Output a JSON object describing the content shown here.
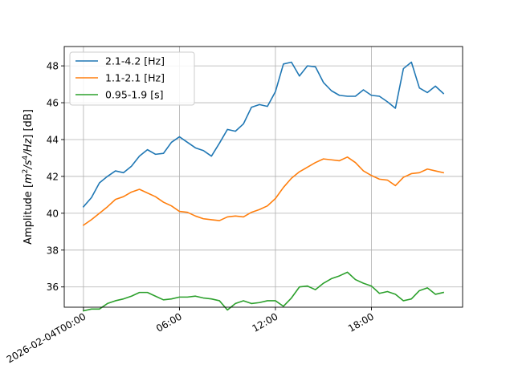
{
  "chart_data": {
    "type": "line",
    "title": "",
    "xlabel": "",
    "ylabel": "Amplitude [m²/s⁴/Hz] [dB]",
    "ylabel_parts": {
      "prefix": "Amplitude [",
      "m": "m",
      "exp2": "2",
      "s": "/s",
      "exp4": "4",
      "hz": "/Hz",
      "suffix": "] [dB]"
    },
    "grid": true,
    "legend_position": "top-left",
    "x_unit": "hours since 2026-02-04T00:00",
    "xlim": [
      -1.2,
      23.7
    ],
    "ylim": [
      34.9,
      49.05
    ],
    "x_ticks": [
      {
        "value": 0,
        "label": "2026-02-04T00:00"
      },
      {
        "value": 6,
        "label": "06:00"
      },
      {
        "value": 12,
        "label": "12:00"
      },
      {
        "value": 18,
        "label": "18:00"
      }
    ],
    "y_ticks": [
      {
        "value": 36,
        "label": "36"
      },
      {
        "value": 38,
        "label": "38"
      },
      {
        "value": 40,
        "label": "40"
      },
      {
        "value": 42,
        "label": "42"
      },
      {
        "value": 44,
        "label": "44"
      },
      {
        "value": 46,
        "label": "46"
      },
      {
        "value": 48,
        "label": "48"
      }
    ],
    "x": [
      0,
      0.5,
      1,
      1.5,
      2,
      2.5,
      3,
      3.5,
      4,
      4.5,
      5,
      5.5,
      6,
      6.5,
      7,
      7.5,
      8,
      8.5,
      9,
      9.5,
      10,
      10.5,
      11,
      11.5,
      12,
      12.5,
      13,
      13.5,
      14,
      14.5,
      15,
      15.5,
      16,
      16.5,
      17,
      17.5,
      18,
      18.5,
      19,
      19.5,
      20,
      20.5,
      21,
      21.5,
      22,
      22.5
    ],
    "series": [
      {
        "name": "2.1-4.2 [Hz]",
        "color": "#1f77b4",
        "values": [
          40.35,
          40.85,
          41.65,
          42.0,
          42.3,
          42.2,
          42.55,
          43.1,
          43.45,
          43.2,
          43.25,
          43.85,
          44.15,
          43.85,
          43.55,
          43.4,
          43.1,
          43.8,
          44.55,
          44.45,
          44.85,
          45.75,
          45.9,
          45.8,
          46.6,
          48.1,
          48.2,
          47.45,
          48.0,
          47.95,
          47.1,
          46.65,
          46.4,
          46.35,
          46.35,
          46.7,
          46.4,
          46.35,
          46.05,
          45.7,
          47.85,
          48.2,
          46.8,
          46.55,
          46.9,
          46.5
        ]
      },
      {
        "name": "1.1-2.1 [Hz]",
        "color": "#ff7f0e",
        "values": [
          39.35,
          39.65,
          40.0,
          40.35,
          40.75,
          40.9,
          41.15,
          41.3,
          41.1,
          40.9,
          40.6,
          40.4,
          40.1,
          40.05,
          39.85,
          39.7,
          39.65,
          39.6,
          39.8,
          39.85,
          39.8,
          40.05,
          40.2,
          40.4,
          40.8,
          41.4,
          41.9,
          42.25,
          42.5,
          42.75,
          42.95,
          42.9,
          42.85,
          43.05,
          42.75,
          42.3,
          42.05,
          41.85,
          41.8,
          41.5,
          41.95,
          42.15,
          42.2,
          42.4,
          42.3,
          42.2
        ]
      },
      {
        "name": "0.95-1.9 [s]",
        "color": "#2ca02c",
        "values": [
          34.7,
          34.8,
          34.8,
          35.1,
          35.25,
          35.35,
          35.5,
          35.7,
          35.7,
          35.5,
          35.3,
          35.35,
          35.45,
          35.45,
          35.5,
          35.4,
          35.35,
          35.25,
          34.75,
          35.1,
          35.25,
          35.1,
          35.15,
          35.25,
          35.25,
          34.95,
          35.4,
          36.0,
          36.05,
          35.85,
          36.2,
          36.45,
          36.6,
          36.8,
          36.4,
          36.2,
          36.05,
          35.65,
          35.75,
          35.6,
          35.25,
          35.35,
          35.8,
          35.95,
          35.6,
          35.7
        ]
      }
    ]
  }
}
